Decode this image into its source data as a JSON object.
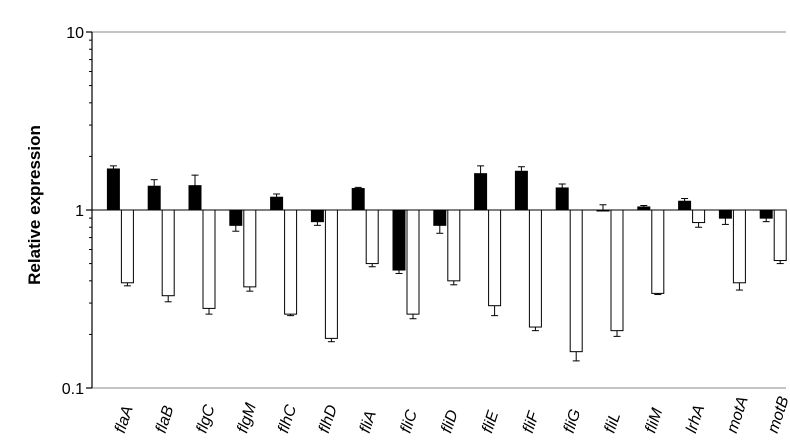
{
  "chart_data": {
    "type": "bar",
    "ylabel": "Relative expression",
    "xlabel": "",
    "title": "",
    "yscale": "log",
    "ylim": [
      0.1,
      10
    ],
    "yticks": [
      {
        "value": 0.1,
        "label": "0.1"
      },
      {
        "value": 1,
        "label": "1"
      },
      {
        "value": 10,
        "label": "10"
      }
    ],
    "grid": false,
    "baseline": 1,
    "categories": [
      "flaA",
      "flaB",
      "flgC",
      "flgM",
      "flhC",
      "flhD",
      "fliA",
      "fliC",
      "fliD",
      "fliE",
      "fliF",
      "fliG",
      "fliL",
      "fliM",
      "lrhA",
      "motA",
      "motB"
    ],
    "series": [
      {
        "color": "#000000",
        "values": [
          1.7,
          1.36,
          1.37,
          0.82,
          1.18,
          0.86,
          1.32,
          0.46,
          0.82,
          1.6,
          1.65,
          1.33,
          1.0,
          1.04,
          1.12,
          0.9,
          0.9
        ],
        "errors": [
          0.07,
          0.12,
          0.2,
          0.06,
          0.05,
          0.04,
          0.02,
          0.02,
          0.08,
          0.17,
          0.1,
          0.07,
          0.07,
          0.02,
          0.04,
          0.07,
          0.04
        ]
      },
      {
        "color": "#ffffff",
        "values": [
          0.39,
          0.33,
          0.28,
          0.37,
          0.26,
          0.19,
          0.5,
          0.26,
          0.4,
          0.29,
          0.22,
          0.16,
          0.21,
          0.34,
          0.85,
          0.39,
          0.52
        ],
        "errors": [
          0.015,
          0.025,
          0.02,
          0.02,
          0.005,
          0.008,
          0.02,
          0.015,
          0.02,
          0.035,
          0.01,
          0.018,
          0.015,
          0.005,
          0.05,
          0.035,
          0.02
        ]
      }
    ]
  }
}
